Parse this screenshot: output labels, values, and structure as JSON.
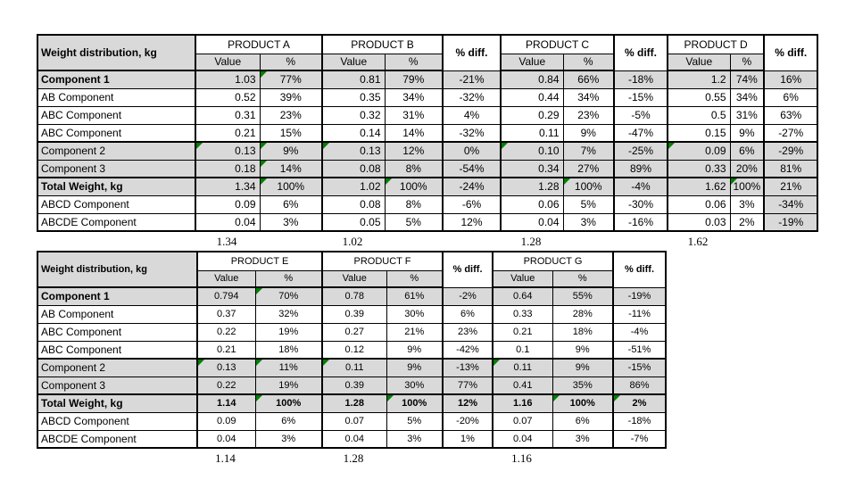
{
  "colors": {
    "header_fill": "#d9d9d9",
    "shaded_row_fill": "#d9d9d9",
    "border": "#000000",
    "flag_triangle_green": "#008000",
    "background": "#ffffff",
    "text": "#000000"
  },
  "tables": [
    {
      "corner_label": "Weight distribution, kg",
      "value_header": "Value",
      "pct_header": "%",
      "diff_header": "% diff.",
      "products": [
        {
          "name": "PRODUCT A",
          "diff_after": false
        },
        {
          "name": "PRODUCT B",
          "diff_after": true
        },
        {
          "name": "PRODUCT C",
          "diff_after": true
        },
        {
          "name": "PRODUCT D",
          "diff_after": true
        }
      ],
      "rows": [
        {
          "label": "Component 1",
          "label_bold": true,
          "values_bold": false,
          "shaded": true,
          "cells": [
            {
              "t": "1.03"
            },
            {
              "t": "77%",
              "flag": true
            },
            {
              "t": "0.81"
            },
            {
              "t": "79%"
            },
            {
              "t": "-21%"
            },
            {
              "t": "0.84"
            },
            {
              "t": "66%"
            },
            {
              "t": "-18%"
            },
            {
              "t": "1.2"
            },
            {
              "t": "74%"
            },
            {
              "t": "16%"
            }
          ]
        },
        {
          "label": "AB Component",
          "label_bold": false,
          "values_bold": false,
          "shaded": false,
          "cells": [
            {
              "t": "0.52"
            },
            {
              "t": "39%"
            },
            {
              "t": "0.35"
            },
            {
              "t": "34%"
            },
            {
              "t": "-32%"
            },
            {
              "t": "0.44"
            },
            {
              "t": "34%"
            },
            {
              "t": "-15%"
            },
            {
              "t": "0.55"
            },
            {
              "t": "34%"
            },
            {
              "t": "6%"
            }
          ]
        },
        {
          "label": "ABC Component",
          "label_bold": false,
          "values_bold": false,
          "shaded": false,
          "cells": [
            {
              "t": "0.31"
            },
            {
              "t": "23%"
            },
            {
              "t": "0.32"
            },
            {
              "t": "31%"
            },
            {
              "t": "4%"
            },
            {
              "t": "0.29"
            },
            {
              "t": "23%"
            },
            {
              "t": "-5%"
            },
            {
              "t": "0.5"
            },
            {
              "t": "31%"
            },
            {
              "t": "63%"
            }
          ]
        },
        {
          "label": "ABC Component",
          "label_bold": false,
          "values_bold": false,
          "shaded": false,
          "cells": [
            {
              "t": "0.21"
            },
            {
              "t": "15%"
            },
            {
              "t": "0.14"
            },
            {
              "t": "14%"
            },
            {
              "t": "-32%"
            },
            {
              "t": "0.11"
            },
            {
              "t": "9%"
            },
            {
              "t": "-47%"
            },
            {
              "t": "0.15"
            },
            {
              "t": "9%"
            },
            {
              "t": "-27%"
            }
          ]
        },
        {
          "label": "Component 2",
          "label_bold": false,
          "values_bold": false,
          "shaded": true,
          "cells": [
            {
              "t": "0.13",
              "flag": true
            },
            {
              "t": "9%",
              "flag": true
            },
            {
              "t": "0.13",
              "flag": true
            },
            {
              "t": "12%"
            },
            {
              "t": "0%"
            },
            {
              "t": "0.10",
              "flag": true
            },
            {
              "t": "7%"
            },
            {
              "t": "-25%"
            },
            {
              "t": "0.09",
              "flag": true
            },
            {
              "t": "6%"
            },
            {
              "t": "-29%"
            }
          ]
        },
        {
          "label": "Component 3",
          "label_bold": false,
          "values_bold": false,
          "shaded": true,
          "cells": [
            {
              "t": "0.18"
            },
            {
              "t": "14%",
              "flag": true
            },
            {
              "t": "0.08"
            },
            {
              "t": "8%"
            },
            {
              "t": "-54%"
            },
            {
              "t": "0.34"
            },
            {
              "t": "27%"
            },
            {
              "t": "89%"
            },
            {
              "t": "0.33"
            },
            {
              "t": "20%"
            },
            {
              "t": "81%"
            }
          ]
        },
        {
          "label": "Total Weight, kg",
          "label_bold": true,
          "values_bold": false,
          "shaded": true,
          "cells": [
            {
              "t": "1.34"
            },
            {
              "t": "100%",
              "flag": true
            },
            {
              "t": "1.02"
            },
            {
              "t": "100%",
              "flag": true
            },
            {
              "t": "-24%"
            },
            {
              "t": "1.28"
            },
            {
              "t": "100%",
              "flag": true
            },
            {
              "t": "-4%"
            },
            {
              "t": "1.62"
            },
            {
              "t": "100%",
              "flag": true
            },
            {
              "t": "21%"
            }
          ]
        },
        {
          "label": "ABCD Component",
          "label_bold": false,
          "values_bold": false,
          "shaded": false,
          "cells": [
            {
              "t": "0.09"
            },
            {
              "t": "6%"
            },
            {
              "t": "0.08"
            },
            {
              "t": "8%"
            },
            {
              "t": "-6%"
            },
            {
              "t": "0.06"
            },
            {
              "t": "5%"
            },
            {
              "t": "-30%"
            },
            {
              "t": "0.06"
            },
            {
              "t": "3%"
            },
            {
              "t": "-34%",
              "shade": true
            }
          ]
        },
        {
          "label": "ABCDE Component",
          "label_bold": false,
          "values_bold": false,
          "shaded": false,
          "cells": [
            {
              "t": "0.04"
            },
            {
              "t": "3%"
            },
            {
              "t": "0.05"
            },
            {
              "t": "5%"
            },
            {
              "t": "12%"
            },
            {
              "t": "0.04"
            },
            {
              "t": "3%"
            },
            {
              "t": "-16%"
            },
            {
              "t": "0.03"
            },
            {
              "t": "2%"
            },
            {
              "t": "-19%",
              "shade": true
            }
          ]
        }
      ],
      "sums": [
        "1.34",
        "1.02",
        "1.28",
        "1.62"
      ]
    },
    {
      "corner_label": "Weight distribution, kg",
      "value_header": "Value",
      "pct_header": "%",
      "diff_header": "% diff.",
      "products": [
        {
          "name": "PRODUCT E",
          "diff_after": false
        },
        {
          "name": "PRODUCT F",
          "diff_after": true
        },
        {
          "name": "PRODUCT G",
          "diff_after": true
        }
      ],
      "rows": [
        {
          "label": "Component 1",
          "label_bold": true,
          "values_bold": false,
          "shaded": true,
          "cells": [
            {
              "t": "0.794"
            },
            {
              "t": "70%",
              "flag": true
            },
            {
              "t": "0.78"
            },
            {
              "t": "61%"
            },
            {
              "t": "-2%"
            },
            {
              "t": "0.64"
            },
            {
              "t": "55%"
            },
            {
              "t": "-19%"
            }
          ]
        },
        {
          "label": "AB Component",
          "label_bold": false,
          "values_bold": false,
          "shaded": false,
          "cells": [
            {
              "t": "0.37"
            },
            {
              "t": "32%"
            },
            {
              "t": "0.39"
            },
            {
              "t": "30%"
            },
            {
              "t": "6%"
            },
            {
              "t": "0.33"
            },
            {
              "t": "28%"
            },
            {
              "t": "-11%"
            }
          ]
        },
        {
          "label": "ABC Component",
          "label_bold": false,
          "values_bold": false,
          "shaded": false,
          "cells": [
            {
              "t": "0.22"
            },
            {
              "t": "19%"
            },
            {
              "t": "0.27"
            },
            {
              "t": "21%"
            },
            {
              "t": "23%"
            },
            {
              "t": "0.21"
            },
            {
              "t": "18%"
            },
            {
              "t": "-4%"
            }
          ]
        },
        {
          "label": "ABC Component",
          "label_bold": false,
          "values_bold": false,
          "shaded": false,
          "cells": [
            {
              "t": "0.21"
            },
            {
              "t": "18%"
            },
            {
              "t": "0.12"
            },
            {
              "t": "9%"
            },
            {
              "t": "-42%"
            },
            {
              "t": "0.1"
            },
            {
              "t": "9%"
            },
            {
              "t": "-51%"
            }
          ]
        },
        {
          "label": "Component 2",
          "label_bold": false,
          "values_bold": false,
          "shaded": true,
          "cells": [
            {
              "t": "0.13",
              "flag": true
            },
            {
              "t": "11%",
              "flag": true
            },
            {
              "t": "0.11",
              "flag": true
            },
            {
              "t": "9%"
            },
            {
              "t": "-13%"
            },
            {
              "t": "0.11",
              "flag": true
            },
            {
              "t": "9%"
            },
            {
              "t": "-15%"
            }
          ]
        },
        {
          "label": "Component 3",
          "label_bold": false,
          "values_bold": false,
          "shaded": true,
          "cells": [
            {
              "t": "0.22"
            },
            {
              "t": "19%"
            },
            {
              "t": "0.39"
            },
            {
              "t": "30%"
            },
            {
              "t": "77%"
            },
            {
              "t": "0.41"
            },
            {
              "t": "35%"
            },
            {
              "t": "86%"
            }
          ]
        },
        {
          "label": "Total Weight, kg",
          "label_bold": true,
          "values_bold": true,
          "shaded": true,
          "cells": [
            {
              "t": "1.14"
            },
            {
              "t": "100%",
              "flag": true
            },
            {
              "t": "1.28"
            },
            {
              "t": "100%",
              "flag": true
            },
            {
              "t": "12%"
            },
            {
              "t": "1.16"
            },
            {
              "t": "100%",
              "flag": true
            },
            {
              "t": "2%",
              "flag": true
            }
          ]
        },
        {
          "label": "ABCD Component",
          "label_bold": false,
          "values_bold": false,
          "shaded": false,
          "cells": [
            {
              "t": "0.09"
            },
            {
              "t": "6%"
            },
            {
              "t": "0.07"
            },
            {
              "t": "5%"
            },
            {
              "t": "-20%"
            },
            {
              "t": "0.07"
            },
            {
              "t": "6%"
            },
            {
              "t": "-18%"
            }
          ]
        },
        {
          "label": "ABCDE Component",
          "label_bold": false,
          "values_bold": false,
          "shaded": false,
          "cells": [
            {
              "t": "0.04"
            },
            {
              "t": "3%"
            },
            {
              "t": "0.04"
            },
            {
              "t": "3%"
            },
            {
              "t": "1%"
            },
            {
              "t": "0.04"
            },
            {
              "t": "3%"
            },
            {
              "t": "-7%"
            }
          ]
        }
      ],
      "sums": [
        "1.14",
        "1.28",
        "1.16"
      ]
    }
  ]
}
